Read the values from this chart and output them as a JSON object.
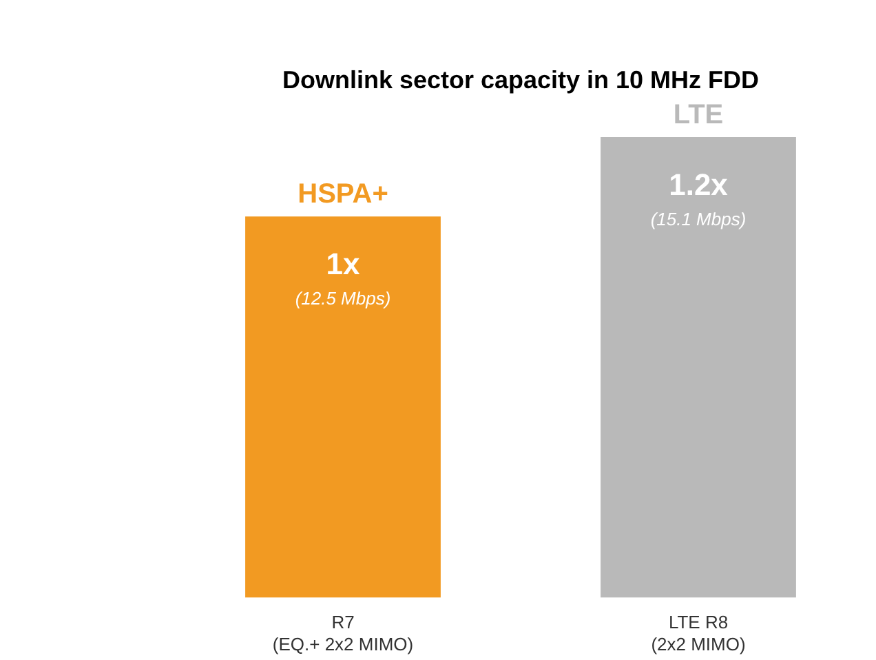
{
  "chart_data": {
    "type": "bar",
    "title": "Downlink sector capacity in 10 MHz FDD",
    "categories": [
      "R7\n(EQ.+ 2x2 MIMO)",
      "LTE R8\n(2x2 MIMO)"
    ],
    "values": [
      12.5,
      15.1
    ],
    "colors": [
      "#f29a22",
      "#b9b9b9"
    ],
    "value_labels": [
      "1x\n(12.5 Mbps)",
      "1.2x\n(15.1 Mbps)"
    ],
    "annotations": [
      {
        "text": "HSPA+",
        "x": "R7\n(EQ.+ 2x2 MIMO)",
        "y": 12.5
      },
      {
        "text": "LTE",
        "x": "LTE R8\n(2x2 MIMO)",
        "y": 15.1
      }
    ],
    "grid": false,
    "legend": false
  }
}
